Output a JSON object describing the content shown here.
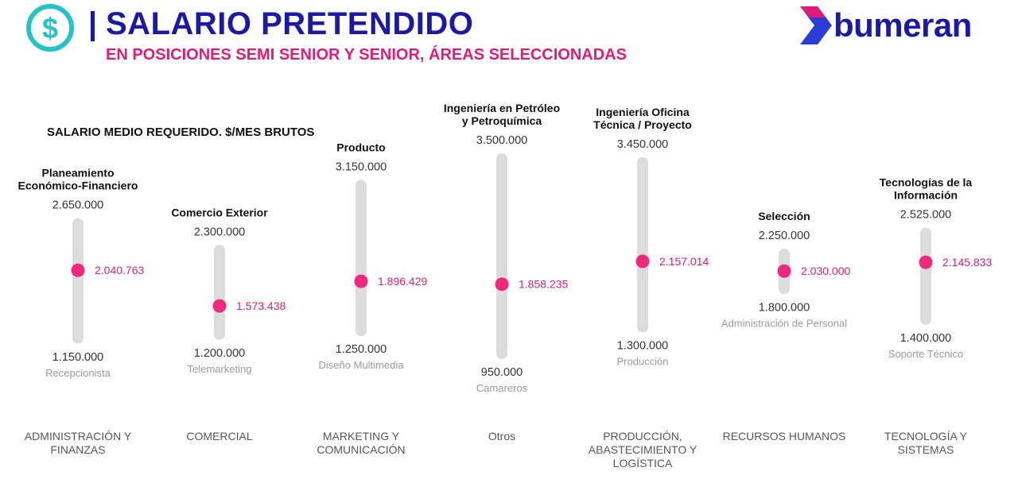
{
  "header": {
    "title": "SALARIO PRETENDIDO",
    "subtitle": "EN POSICIONES SEMI SENIOR Y SENIOR, ÁREAS SELECCIONADAS",
    "logo_text": "bumeran",
    "icon": "dollar-circle-icon"
  },
  "colors": {
    "title": "#1a1aa6",
    "accent": "#e21b7a",
    "icon": "#22c4c8",
    "bar": "#dcdcdc",
    "dot": "#f2277e"
  },
  "chart_data": {
    "type": "range-dot",
    "title": "SALARIO MEDIO REQUERIDO. $/MES BRUTOS",
    "ylim": [
      950000,
      3500000
    ],
    "items": [
      {
        "area": [
          "ADMINISTRACIÓN Y",
          "FINANZAS"
        ],
        "max_label": [
          "Planeamiento",
          "Económico-Financiero"
        ],
        "max": 2650000,
        "max_text": "2.650.000",
        "min": 1150000,
        "min_text": "1.150.000",
        "min_label": "Recepcionista",
        "mean": 2040763,
        "mean_text": "2.040.763"
      },
      {
        "area": [
          "COMERCIAL"
        ],
        "max_label": [
          "Comercio Exterior"
        ],
        "max": 2300000,
        "max_text": "2.300.000",
        "min": 1200000,
        "min_text": "1.200.000",
        "min_label": "Telemarketing",
        "mean": 1573438,
        "mean_text": "1.573.438"
      },
      {
        "area": [
          "MARKETING Y",
          "COMUNICACIÓN"
        ],
        "max_label": [
          "Producto"
        ],
        "max": 3150000,
        "max_text": "3.150.000",
        "min": 1250000,
        "min_text": "1.250.000",
        "min_label": "Diseño Multimedia",
        "mean": 1896429,
        "mean_text": "1.896.429"
      },
      {
        "area": [
          "Otros"
        ],
        "max_label": [
          "Ingeniería en Petróleo",
          "y Petroquímica"
        ],
        "max": 3500000,
        "max_text": "3.500.000",
        "min": 950000,
        "min_text": "950.000",
        "min_label": "Camareros",
        "mean": 1858235,
        "mean_text": "1.858.235"
      },
      {
        "area": [
          "PRODUCCIÓN,",
          "ABASTECIMIENTO Y",
          "LOGÍSTICA"
        ],
        "max_label": [
          "Ingeniería Oficina",
          "Técnica / Proyecto"
        ],
        "max": 3450000,
        "max_text": "3.450.000",
        "min": 1300000,
        "min_text": "1.300.000",
        "min_label": "Producción",
        "mean": 2157014,
        "mean_text": "2.157.014"
      },
      {
        "area": [
          "RECURSOS HUMANOS"
        ],
        "max_label": [
          "Selección"
        ],
        "max": 2250000,
        "max_text": "2.250.000",
        "min": 1800000,
        "min_text": "1.800.000",
        "min_label": "Administración de Personal",
        "mean": 2030000,
        "mean_text": "2.030.000"
      },
      {
        "area": [
          "TECNOLOGÍA Y",
          "SISTEMAS"
        ],
        "max_label": [
          "Tecnologías de la",
          "Información"
        ],
        "max": 2525000,
        "max_text": "2.525.000",
        "min": 1400000,
        "min_text": "1.400.000",
        "min_label": "Soporte Técnico",
        "mean": 2145833,
        "mean_text": "2.145.833"
      }
    ]
  }
}
